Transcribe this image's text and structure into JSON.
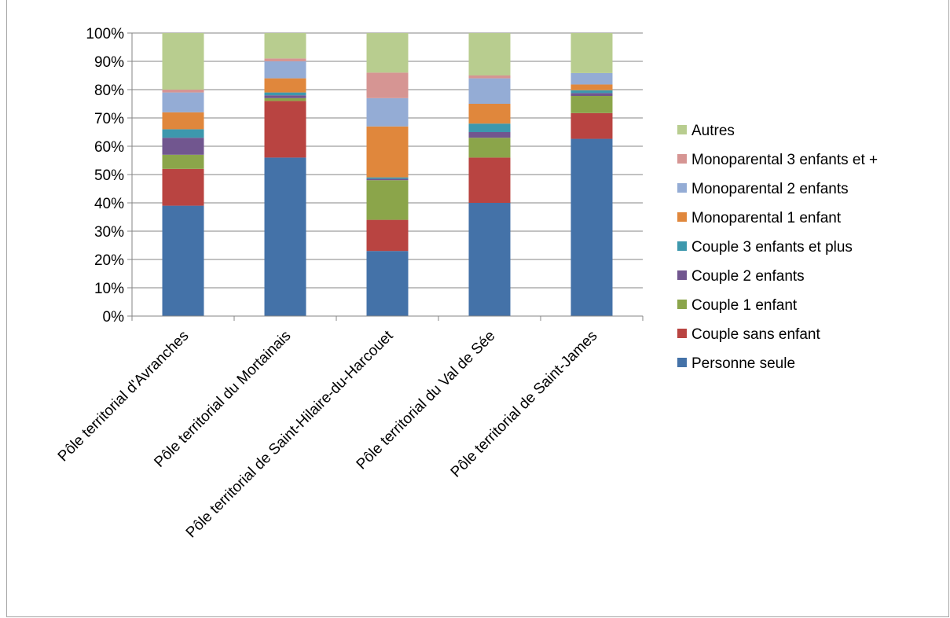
{
  "chart_data": {
    "type": "bar",
    "stacked": true,
    "percent": true,
    "categories": [
      "Pôle territorial d'Avranches",
      "Pôle territorial du Mortainais",
      "Pôle territorial de Saint-Hilaire-du-Harcouet",
      "Pôle territorial du Val de Sée",
      "Pôle territorial de Saint-James"
    ],
    "series": [
      {
        "name": "Personne seule",
        "color": "#4472a8",
        "values": [
          39,
          56,
          23,
          40,
          62
        ]
      },
      {
        "name": "Couple sans enfant",
        "color": "#b94441",
        "values": [
          13,
          20,
          11,
          16,
          9
        ]
      },
      {
        "name": "Couple 1 enfant",
        "color": "#8ba54a",
        "values": [
          5,
          1,
          14,
          7,
          6
        ]
      },
      {
        "name": "Couple 2 enfants",
        "color": "#71568f",
        "values": [
          6,
          1,
          0.5,
          2,
          1
        ]
      },
      {
        "name": "Couple 3 enfants et plus",
        "color": "#3d98ad",
        "values": [
          3,
          1,
          0.5,
          3,
          1
        ]
      },
      {
        "name": "Monoparental 1 enfant",
        "color": "#e0873c",
        "values": [
          6,
          5,
          18,
          7,
          2
        ]
      },
      {
        "name": "Monoparental 2 enfants",
        "color": "#94acd5",
        "values": [
          7,
          6,
          10,
          9,
          4
        ]
      },
      {
        "name": "Monoparental 3 enfants et +",
        "color": "#d69593",
        "values": [
          1,
          1,
          9,
          1,
          0
        ]
      },
      {
        "name": "Autres",
        "color": "#b8cd8f",
        "values": [
          20,
          9,
          14,
          15,
          14
        ]
      }
    ],
    "y_ticks": [
      "0%",
      "10%",
      "20%",
      "30%",
      "40%",
      "50%",
      "60%",
      "70%",
      "80%",
      "90%",
      "100%"
    ],
    "ylim": [
      0,
      100
    ],
    "grid": true,
    "legend_position": "right",
    "legend_order": [
      "Autres",
      "Monoparental 3 enfants et +",
      "Monoparental 2 enfants",
      "Monoparental 1 enfant",
      "Couple 3 enfants et plus",
      "Couple 2 enfants",
      "Couple 1 enfant",
      "Couple sans enfant",
      "Personne seule"
    ]
  }
}
